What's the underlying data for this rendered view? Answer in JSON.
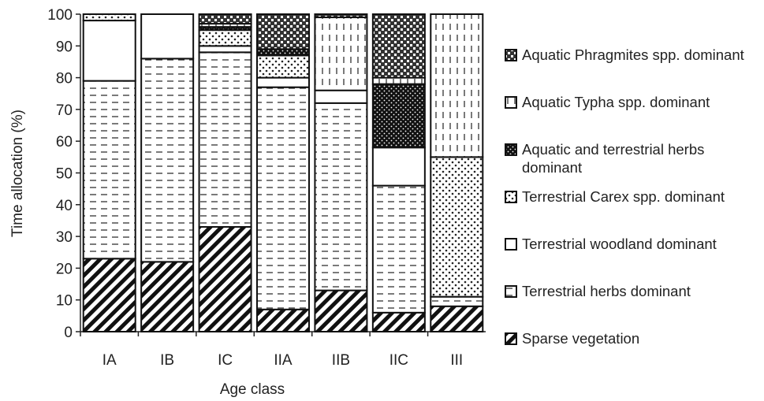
{
  "chart_data": {
    "type": "stacked-bar",
    "x_label": "Age class",
    "y_label": "Time allocation (%)",
    "categories": [
      "IA",
      "IB",
      "IC",
      "IIA",
      "IIB",
      "IIC",
      "III"
    ],
    "series": [
      {
        "name": "Sparse vegetation",
        "pattern": "diagonal-hatch",
        "values": [
          23,
          22,
          33,
          7,
          13,
          6,
          8
        ]
      },
      {
        "name": "Terrestrial herbs dominant",
        "pattern": "horizontal-dash",
        "values": [
          56,
          64,
          55,
          70,
          59,
          40,
          3
        ]
      },
      {
        "name": "Terrestrial woodland dominant",
        "pattern": "plain-white",
        "values": [
          19,
          14,
          2,
          3,
          4,
          12,
          0
        ]
      },
      {
        "name": "Terrestrial Carex spp. dominant",
        "pattern": "light-dots",
        "values": [
          2,
          0,
          5,
          7,
          0,
          0,
          44
        ]
      },
      {
        "name": "Aquatic and terrestrial herbs dominant",
        "pattern": "dense-dots",
        "values": [
          0,
          0,
          1,
          2,
          0,
          20,
          0
        ]
      },
      {
        "name": "Aquatic Typha spp. dominant",
        "pattern": "vertical-dash",
        "values": [
          0,
          0,
          1,
          0,
          23,
          2,
          45
        ]
      },
      {
        "name": "Aquatic Phragmites spp. dominant",
        "pattern": "checker",
        "values": [
          0,
          0,
          3,
          11,
          1,
          20,
          0
        ]
      }
    ],
    "ylim": [
      0,
      100
    ],
    "yticks": [
      0,
      10,
      20,
      30,
      40,
      50,
      60,
      70,
      80,
      90,
      100
    ],
    "legend": "right"
  }
}
